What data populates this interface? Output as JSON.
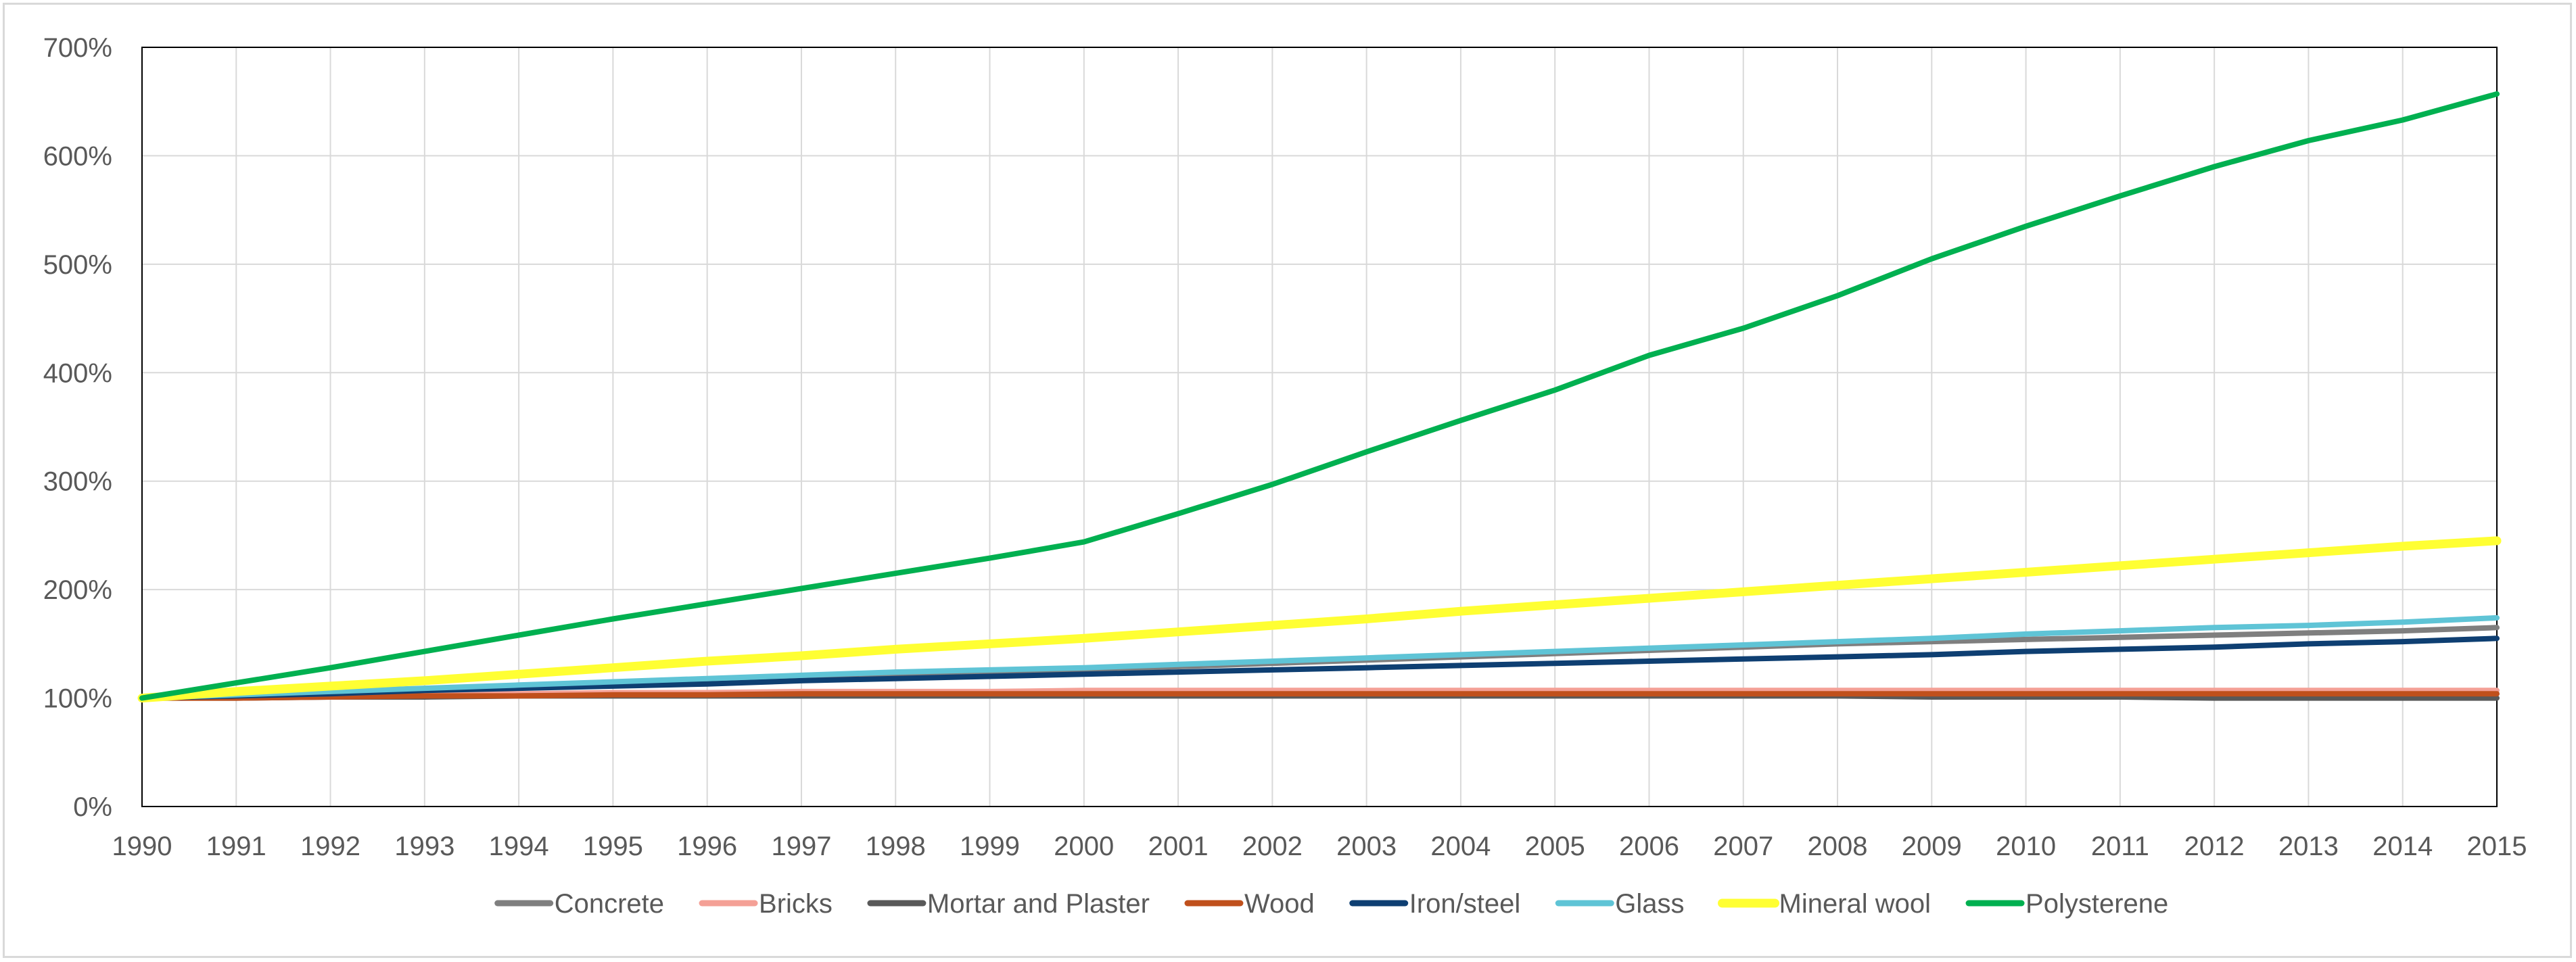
{
  "chart_data": {
    "type": "line",
    "title": "",
    "xlabel": "",
    "ylabel": "",
    "ylim": [
      0,
      7
    ],
    "y_ticks": [
      "0%",
      "100%",
      "200%",
      "300%",
      "400%",
      "500%",
      "600%",
      "700%"
    ],
    "x": [
      "1990",
      "1991",
      "1992",
      "1993",
      "1994",
      "1995",
      "1996",
      "1997",
      "1998",
      "1999",
      "2000",
      "2001",
      "2002",
      "2003",
      "2004",
      "2005",
      "2006",
      "2007",
      "2008",
      "2009",
      "2010",
      "2011",
      "2012",
      "2013",
      "2014",
      "2015"
    ],
    "grid": "vertical and horizontal",
    "legend_position": "bottom",
    "series": [
      {
        "name": "Concrete",
        "color": "#7f7f7f",
        "values": [
          1.0,
          1.02,
          1.04,
          1.07,
          1.1,
          1.13,
          1.16,
          1.19,
          1.22,
          1.24,
          1.26,
          1.29,
          1.32,
          1.35,
          1.38,
          1.41,
          1.44,
          1.47,
          1.5,
          1.52,
          1.54,
          1.56,
          1.58,
          1.6,
          1.62,
          1.65
        ]
      },
      {
        "name": "Bricks",
        "color": "#f4a096",
        "values": [
          1.0,
          1.01,
          1.02,
          1.03,
          1.04,
          1.05,
          1.05,
          1.06,
          1.06,
          1.06,
          1.07,
          1.07,
          1.07,
          1.07,
          1.07,
          1.07,
          1.07,
          1.07,
          1.07,
          1.07,
          1.07,
          1.07,
          1.07,
          1.07,
          1.07,
          1.07
        ]
      },
      {
        "name": "Mortar and Plaster",
        "color": "#595959",
        "values": [
          1.0,
          1.0,
          1.01,
          1.01,
          1.02,
          1.02,
          1.02,
          1.02,
          1.02,
          1.02,
          1.02,
          1.02,
          1.02,
          1.02,
          1.02,
          1.02,
          1.02,
          1.02,
          1.02,
          1.01,
          1.01,
          1.01,
          1.0,
          1.0,
          1.0,
          1.0
        ]
      },
      {
        "name": "Wood",
        "color": "#c0501c",
        "values": [
          1.0,
          1.0,
          1.01,
          1.02,
          1.02,
          1.03,
          1.03,
          1.04,
          1.04,
          1.04,
          1.04,
          1.04,
          1.04,
          1.04,
          1.04,
          1.04,
          1.04,
          1.04,
          1.04,
          1.04,
          1.04,
          1.04,
          1.04,
          1.04,
          1.04,
          1.04
        ]
      },
      {
        "name": "Iron/steel",
        "color": "#0e3f72",
        "values": [
          1.0,
          1.02,
          1.04,
          1.07,
          1.09,
          1.11,
          1.13,
          1.16,
          1.18,
          1.2,
          1.22,
          1.24,
          1.26,
          1.28,
          1.3,
          1.32,
          1.34,
          1.36,
          1.38,
          1.4,
          1.43,
          1.45,
          1.47,
          1.5,
          1.52,
          1.55
        ]
      },
      {
        "name": "Glass",
        "color": "#5fc4d6",
        "values": [
          1.0,
          1.03,
          1.06,
          1.09,
          1.12,
          1.15,
          1.18,
          1.21,
          1.24,
          1.26,
          1.28,
          1.31,
          1.34,
          1.37,
          1.4,
          1.43,
          1.46,
          1.49,
          1.52,
          1.55,
          1.59,
          1.62,
          1.65,
          1.67,
          1.7,
          1.74
        ]
      },
      {
        "name": "Mineral wool",
        "color": "#ffff33",
        "values": [
          1.0,
          1.06,
          1.11,
          1.16,
          1.22,
          1.28,
          1.34,
          1.39,
          1.45,
          1.5,
          1.55,
          1.61,
          1.67,
          1.73,
          1.8,
          1.86,
          1.92,
          1.98,
          2.04,
          2.1,
          2.16,
          2.22,
          2.28,
          2.34,
          2.4,
          2.45
        ]
      },
      {
        "name": "Polysterene",
        "color": "#00b050",
        "values": [
          1.0,
          1.14,
          1.28,
          1.43,
          1.58,
          1.73,
          1.87,
          2.01,
          2.15,
          2.29,
          2.44,
          2.7,
          2.97,
          3.27,
          3.56,
          3.84,
          4.16,
          4.41,
          4.71,
          5.05,
          5.35,
          5.63,
          5.9,
          6.14,
          6.33,
          6.57
        ]
      }
    ]
  }
}
